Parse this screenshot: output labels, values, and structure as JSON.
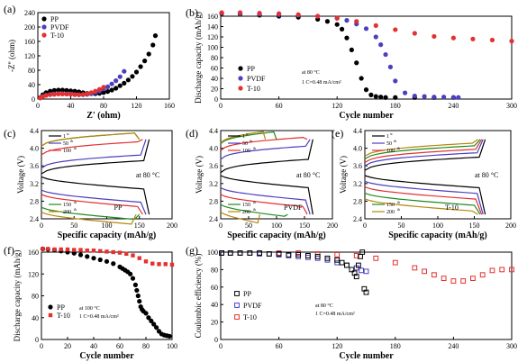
{
  "colors": {
    "pp": "#000000",
    "pvdf": "#4b3fbf",
    "t10": "#e53030",
    "green": "#1f8a1f"
  },
  "chart_data": [
    {
      "panel": "(a)",
      "type": "scatter",
      "xlabel": "Z' (ohm)",
      "ylabel": "-Z'' (ohm)",
      "xlim": [
        0,
        160
      ],
      "ylim": [
        0,
        240
      ],
      "xticks": [
        "0",
        "40",
        "80",
        "120",
        "160"
      ],
      "yticks": [
        "0",
        "40",
        "80",
        "120",
        "160",
        "200",
        "240"
      ],
      "legend": "top-left",
      "series": [
        {
          "name": "PP",
          "marker": "circle",
          "x": [
            3,
            6,
            10,
            15,
            20,
            25,
            30,
            35,
            40,
            45,
            50,
            55,
            60,
            65,
            70,
            75,
            80,
            85,
            90,
            95,
            100,
            105,
            110,
            115,
            120,
            125,
            130,
            135,
            140,
            143
          ],
          "y": [
            4,
            12,
            18,
            22,
            24,
            25,
            25,
            24,
            23,
            22,
            20,
            18,
            16,
            15,
            15,
            16,
            18,
            21,
            25,
            30,
            37,
            44,
            53,
            63,
            75,
            90,
            106,
            125,
            150,
            176
          ]
        },
        {
          "name": "PVDF",
          "marker": "circle",
          "x": [
            3,
            6,
            10,
            15,
            20,
            25,
            30,
            35,
            40,
            45,
            50,
            55,
            60,
            65,
            70,
            75,
            80,
            85,
            90,
            95,
            100,
            105
          ],
          "y": [
            3,
            8,
            11,
            13,
            14,
            15,
            15,
            14,
            14,
            13,
            12,
            12,
            13,
            15,
            18,
            22,
            28,
            34,
            42,
            51,
            62,
            77
          ]
        },
        {
          "name": "T-10",
          "marker": "circle",
          "x": [
            3,
            6,
            10,
            15,
            20,
            25,
            30,
            35,
            40,
            45,
            50,
            55,
            60,
            65,
            70,
            75,
            80
          ],
          "y": [
            3,
            7,
            10,
            12,
            13,
            14,
            14,
            14,
            13,
            12,
            12,
            13,
            15,
            18,
            22,
            27,
            33
          ]
        }
      ]
    },
    {
      "panel": "(b)",
      "type": "scatter",
      "xlabel": "Cycle number",
      "ylabel": "Discharge capacity (mAh/g)",
      "xlim": [
        0,
        300
      ],
      "ylim": [
        0,
        160
      ],
      "xticks": [
        "0",
        "60",
        "120",
        "180",
        "240",
        "300"
      ],
      "yticks": [
        "0",
        "20",
        "40",
        "60",
        "80",
        "100",
        "120",
        "140",
        "160"
      ],
      "legend": "bottom-left",
      "annotation": [
        "at 80 °C",
        "1 C=0.48 mA/cm²"
      ],
      "series": [
        {
          "name": "PP",
          "marker": "circle",
          "x": [
            1,
            20,
            40,
            60,
            80,
            100,
            110,
            120,
            125,
            130,
            135,
            140,
            145,
            150,
            155,
            160,
            165,
            170,
            180,
            200,
            220,
            240
          ],
          "y": [
            165,
            164,
            162,
            160,
            158,
            154,
            150,
            144,
            135,
            118,
            95,
            70,
            40,
            18,
            8,
            5,
            4,
            3,
            3,
            3,
            3,
            3
          ]
        },
        {
          "name": "PVDF",
          "marker": "circle",
          "x": [
            1,
            20,
            40,
            60,
            80,
            100,
            120,
            130,
            140,
            150,
            160,
            165,
            170,
            175,
            180,
            190,
            200,
            210,
            220,
            230,
            240,
            245
          ],
          "y": [
            166,
            165,
            164,
            163,
            162,
            160,
            156,
            152,
            145,
            136,
            120,
            105,
            86,
            62,
            35,
            12,
            6,
            5,
            4,
            4,
            3,
            3
          ]
        },
        {
          "name": "T-10",
          "marker": "circle",
          "x": [
            1,
            20,
            40,
            60,
            80,
            100,
            120,
            140,
            160,
            180,
            200,
            220,
            240,
            260,
            280,
            300
          ],
          "y": [
            167,
            167,
            166,
            165,
            163,
            160,
            156,
            150,
            142,
            134,
            127,
            121,
            118,
            116,
            114,
            112
          ]
        }
      ]
    },
    {
      "panel": "(c)",
      "type": "line",
      "xlabel": "Specific capacity (mAh/g)",
      "ylabel": "Voltage (V)",
      "xlim": [
        0,
        200
      ],
      "ylim": [
        2.4,
        4.4
      ],
      "xticks": [
        "0",
        "50",
        "100",
        "150",
        "200"
      ],
      "yticks": [
        "2.4",
        "2.8",
        "3.2",
        "3.6",
        "4.0",
        "4.4"
      ],
      "labels": {
        "c1": "1",
        "c50": "50",
        "c100": "100",
        "c150": "150",
        "c200": "200",
        "th": "th",
        "st": "st"
      },
      "annotation": [
        "at 80 °C",
        "PP"
      ]
    },
    {
      "panel": "(d)",
      "type": "line",
      "xlabel": "Specific capacity (mAh/g)",
      "ylabel": "Voltage (V)",
      "xlim": [
        0,
        200
      ],
      "ylim": [
        2.4,
        4.4
      ],
      "xticks": [
        "0",
        "50",
        "100",
        "150",
        "200"
      ],
      "yticks": [
        "2.4",
        "2.8",
        "3.2",
        "3.6",
        "4.0",
        "4.4"
      ],
      "annotation": [
        "at 80 °C",
        "PVDF"
      ]
    },
    {
      "panel": "(e)",
      "type": "line",
      "xlabel": "Specific capacity (mAh/g)",
      "ylabel": "Voltage (V)",
      "xlim": [
        0,
        200
      ],
      "ylim": [
        2.4,
        4.4
      ],
      "xticks": [
        "0",
        "50",
        "100",
        "150",
        "200"
      ],
      "yticks": [
        "2.4",
        "2.8",
        "3.2",
        "3.6",
        "4.0",
        "4.4"
      ],
      "annotation": [
        "at 80 °C",
        "T-10"
      ]
    },
    {
      "panel": "(f)",
      "type": "scatter",
      "xlabel": "Cycle number",
      "ylabel": "Discharge capacity (mAh/g)",
      "xlim": [
        0,
        100
      ],
      "ylim": [
        0,
        160
      ],
      "xticks": [
        "0",
        "20",
        "40",
        "60",
        "80",
        "100"
      ],
      "yticks": [
        "0",
        "40",
        "80",
        "120",
        "160"
      ],
      "legend": "bottom-left",
      "annotation": [
        "at 100 °C",
        "1 C=0.48 mA/cm²"
      ],
      "series": [
        {
          "name": "PP",
          "marker": "circle",
          "x": [
            1,
            5,
            10,
            15,
            20,
            25,
            30,
            35,
            40,
            45,
            50,
            55,
            60,
            62,
            64,
            66,
            68,
            70,
            72,
            73,
            74,
            75,
            76,
            77,
            78,
            80,
            82,
            84,
            86,
            88,
            90,
            92,
            94,
            96,
            98
          ],
          "y": [
            166,
            165,
            164,
            162,
            160,
            158,
            155,
            152,
            149,
            146,
            143,
            139,
            133,
            130,
            127,
            124,
            120,
            112,
            100,
            90,
            80,
            70,
            60,
            55,
            52,
            48,
            40,
            34,
            28,
            22,
            15,
            10,
            8,
            7,
            6
          ]
        },
        {
          "name": "T-10",
          "marker": "square",
          "x": [
            1,
            5,
            10,
            15,
            20,
            25,
            30,
            35,
            40,
            45,
            50,
            55,
            60,
            65,
            70,
            75,
            80,
            85,
            90,
            95,
            100
          ],
          "y": [
            166,
            166,
            165,
            165,
            165,
            164,
            164,
            163,
            163,
            162,
            161,
            160,
            159,
            157,
            154,
            149,
            143,
            139,
            138,
            138,
            137
          ]
        }
      ]
    },
    {
      "panel": "(g)",
      "type": "scatter",
      "xlabel": "Cycle number",
      "ylabel": "Coulombic efficiency (%)",
      "xlim": [
        0,
        300
      ],
      "ylim": [
        0,
        100
      ],
      "xticks": [
        "0",
        "60",
        "120",
        "180",
        "240",
        "300"
      ],
      "yticks": [
        "0",
        "20",
        "40",
        "60",
        "80",
        "100"
      ],
      "legend": "bottom-left",
      "annotation": [
        "at 80 °C",
        "1 C=0.48 mA/cm²"
      ],
      "series": [
        {
          "name": "PP",
          "marker": "square-open",
          "x": [
            1,
            10,
            20,
            30,
            40,
            50,
            60,
            70,
            80,
            90,
            100,
            110,
            120,
            125,
            130,
            135,
            138,
            140,
            142,
            144,
            146,
            148,
            150
          ],
          "y": [
            99,
            99,
            99,
            99,
            99,
            98,
            98,
            97,
            97,
            96,
            95,
            93,
            91,
            88,
            85,
            80,
            76,
            72,
            85,
            95,
            100,
            58,
            54
          ]
        },
        {
          "name": "PVDF",
          "marker": "square-open",
          "x": [
            1,
            10,
            20,
            30,
            40,
            50,
            60,
            70,
            80,
            90,
            100,
            110,
            120,
            130,
            140,
            145,
            150
          ],
          "y": [
            99,
            99,
            99,
            99,
            98,
            98,
            97,
            96,
            95,
            94,
            93,
            91,
            88,
            85,
            82,
            79,
            78
          ]
        },
        {
          "name": "T-10",
          "marker": "square-open",
          "x": [
            1,
            20,
            40,
            60,
            80,
            100,
            120,
            140,
            160,
            180,
            200,
            210,
            220,
            230,
            240,
            250,
            260,
            270,
            280,
            290,
            300
          ],
          "y": [
            99,
            99,
            99,
            99,
            99,
            98,
            97,
            96,
            93,
            88,
            82,
            78,
            74,
            70,
            67,
            67,
            70,
            74,
            79,
            80,
            80
          ]
        }
      ]
    }
  ]
}
